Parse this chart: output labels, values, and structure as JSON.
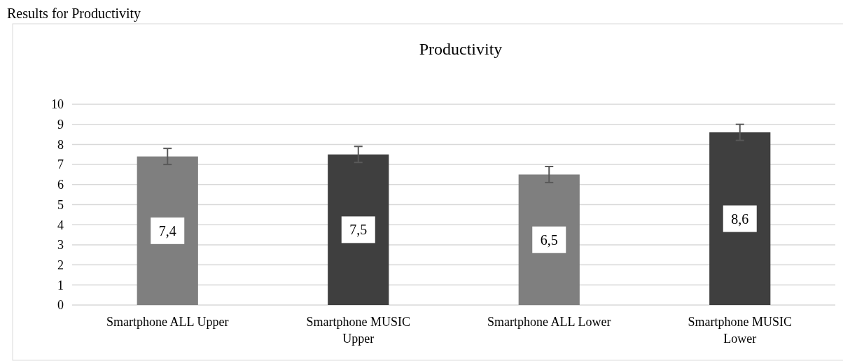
{
  "chart_data": {
    "type": "bar",
    "title": "Productivity",
    "annotations": [
      "Results for Productivity"
    ],
    "categories": [
      "Smartphone ALL Upper",
      "Smartphone MUSIC Upper",
      "Smartphone ALL Lower",
      "Smartphone MUSIC Lower"
    ],
    "values": [
      7.4,
      7.5,
      6.5,
      8.6
    ],
    "colors": [
      "#7f7f7f",
      "#3f3f3f",
      "#7f7f7f",
      "#3f3f3f"
    ],
    "errors": [
      0.4,
      0.4,
      0.4,
      0.4
    ],
    "value_labels": [
      "7,4",
      "7,5",
      "6,5",
      "8,6"
    ],
    "ylim": [
      0,
      10
    ],
    "yticks": [
      0,
      1,
      2,
      3,
      4,
      5,
      6,
      7,
      8,
      9,
      10
    ],
    "grid": "y"
  }
}
